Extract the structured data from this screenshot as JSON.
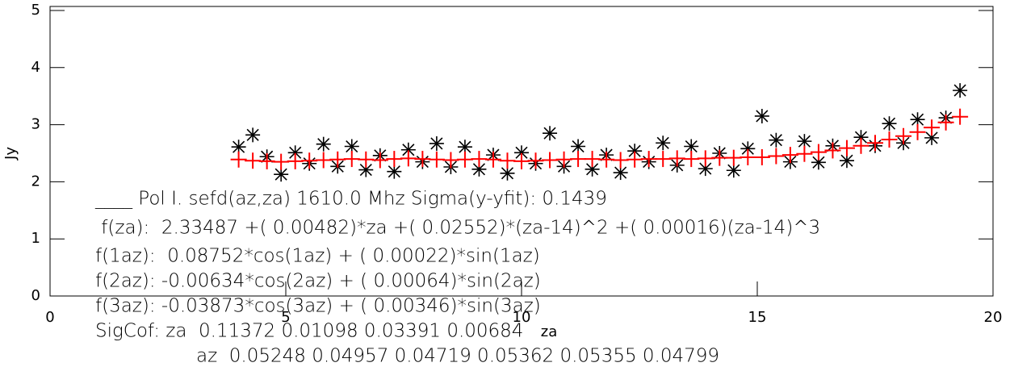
{
  "chart_data": {
    "type": "scatter",
    "x_label": "za",
    "y_label": "Jy",
    "xlim": [
      0,
      20
    ],
    "xticks": [
      0,
      5,
      10,
      15,
      20
    ],
    "ylim": [
      0,
      5
    ],
    "yticks": [
      0,
      1,
      2,
      3,
      4,
      5
    ],
    "x": [
      4.0,
      4.3,
      4.6,
      4.9,
      5.2,
      5.5,
      5.8,
      6.1,
      6.4,
      6.7,
      7.0,
      7.3,
      7.6,
      7.9,
      8.2,
      8.5,
      8.8,
      9.1,
      9.4,
      9.7,
      10.0,
      10.3,
      10.6,
      10.9,
      11.2,
      11.5,
      11.8,
      12.1,
      12.4,
      12.7,
      13.0,
      13.3,
      13.6,
      13.9,
      14.2,
      14.5,
      14.8,
      15.1,
      15.4,
      15.7,
      16.0,
      16.3,
      16.6,
      16.9,
      17.2,
      17.5,
      17.8,
      18.1,
      18.4,
      18.7,
      19.0,
      19.3
    ],
    "series": [
      {
        "marker": "asterisk",
        "color": "#000000",
        "values": [
          2.61,
          2.82,
          2.44,
          2.13,
          2.51,
          2.32,
          2.66,
          2.27,
          2.62,
          2.21,
          2.46,
          2.18,
          2.56,
          2.35,
          2.67,
          2.26,
          2.61,
          2.22,
          2.47,
          2.15,
          2.51,
          2.32,
          2.85,
          2.27,
          2.62,
          2.22,
          2.47,
          2.16,
          2.54,
          2.35,
          2.68,
          2.29,
          2.62,
          2.23,
          2.5,
          2.2,
          2.58,
          3.15,
          2.73,
          2.35,
          2.71,
          2.34,
          2.63,
          2.37,
          2.78,
          2.63,
          3.02,
          2.68,
          3.09,
          2.77,
          3.12,
          3.6
        ]
      },
      {
        "marker": "plus",
        "color": "#ff0000",
        "values": [
          2.39,
          2.37,
          2.36,
          2.35,
          2.36,
          2.37,
          2.38,
          2.39,
          2.4,
          2.39,
          2.38,
          2.4,
          2.41,
          2.4,
          2.39,
          2.38,
          2.39,
          2.4,
          2.39,
          2.37,
          2.36,
          2.37,
          2.38,
          2.39,
          2.4,
          2.4,
          2.39,
          2.38,
          2.39,
          2.4,
          2.4,
          2.41,
          2.4,
          2.41,
          2.42,
          2.42,
          2.43,
          2.43,
          2.45,
          2.47,
          2.49,
          2.52,
          2.55,
          2.59,
          2.63,
          2.68,
          2.74,
          2.8,
          2.87,
          2.95,
          3.04,
          3.14
        ]
      }
    ],
    "annotations": [
      "____ Pol I. sefd(az,za) 1610.0 Mhz Sigma(y-yfit): 0.1439",
      " f(za):  2.33487 +( 0.00482)*za +( 0.02552)*(za-14)^2 +( 0.00016)(za-14)^3",
      "f(1az):  0.08752*cos(1az) + ( 0.00022)*sin(1az)",
      "f(2az): -0.00634*cos(2az) + ( 0.00064)*sin(2az)",
      "f(3az): -0.03873*cos(3az) + ( 0.00346)*sin(3az)",
      "SigCof: za  0.11372 0.01098 0.03391 0.00684",
      "az  0.05248 0.04957 0.04719 0.05362 0.05355 0.04799"
    ]
  }
}
